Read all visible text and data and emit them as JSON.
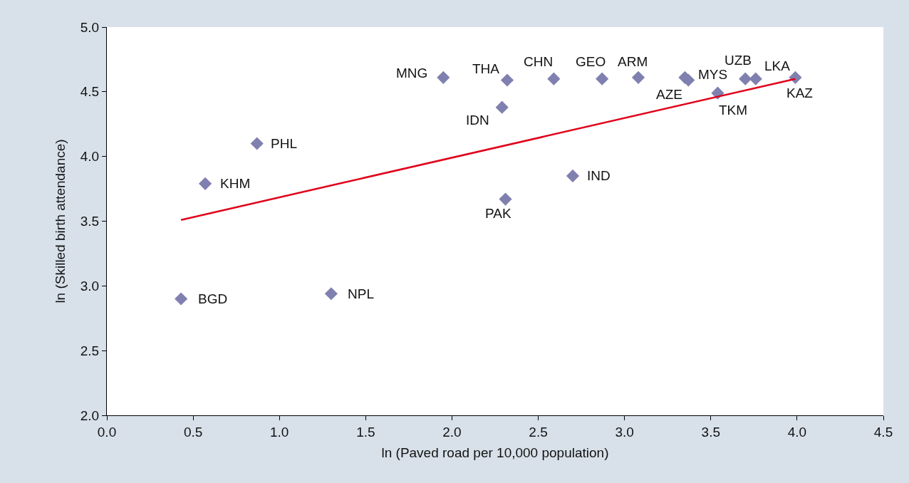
{
  "chart_data": {
    "type": "scatter",
    "xlabel": "ln (Paved road per 10,000 population)",
    "ylabel": "ln (Skilled birth attendance)",
    "xlim": [
      0,
      4.5
    ],
    "xticks": [
      {
        "value": 0,
        "label": "0.0"
      },
      {
        "value": 0.5,
        "label": "0.5"
      },
      {
        "value": 1,
        "label": "1.0"
      },
      {
        "value": 1.5,
        "label": "1.5"
      },
      {
        "value": 2,
        "label": "2.0"
      },
      {
        "value": 2.5,
        "label": "2.5"
      },
      {
        "value": 3,
        "label": "3.0"
      },
      {
        "value": 3.5,
        "label": "3.5"
      },
      {
        "value": 4,
        "label": "4.0"
      },
      {
        "value": 4.5,
        "label": "4.5"
      }
    ],
    "ylim": [
      2,
      5
    ],
    "yticks": [
      {
        "value": 2,
        "label": "2.0"
      },
      {
        "value": 2.5,
        "label": "2.5"
      },
      {
        "value": 3,
        "label": "3.0"
      },
      {
        "value": 3.5,
        "label": "3.5"
      },
      {
        "value": 4,
        "label": "4.0"
      },
      {
        "value": 4.5,
        "label": "4.5"
      },
      {
        "value": 5,
        "label": "5.0"
      }
    ],
    "grid": false,
    "series": [
      {
        "marker": "diamond",
        "color": "#8080b0",
        "x": [
          0.43,
          0.57,
          0.87,
          1.3,
          1.95,
          2.29,
          2.32,
          2.31,
          2.59,
          2.7,
          2.87,
          3.08,
          3.35,
          3.37,
          3.54,
          3.7,
          3.76,
          3.99
        ],
        "values": [
          2.9,
          3.79,
          4.1,
          2.94,
          4.61,
          4.38,
          4.59,
          3.67,
          4.6,
          3.85,
          4.6,
          4.61,
          4.61,
          4.59,
          4.49,
          4.6,
          4.6,
          4.61
        ]
      },
      {
        "type": "line",
        "marker": "none",
        "color": "#e0001a",
        "x": [
          0.43,
          3.99
        ],
        "values": [
          3.51,
          4.6
        ]
      }
    ],
    "annotations": [
      {
        "text": "BGD",
        "x": 0.43,
        "y": 2.9
      },
      {
        "text": "KHM",
        "x": 0.57,
        "y": 3.79
      },
      {
        "text": "PHL",
        "x": 0.87,
        "y": 4.1
      },
      {
        "text": "NPL",
        "x": 1.3,
        "y": 2.94
      },
      {
        "text": "MNG",
        "x": 1.95,
        "y": 4.61
      },
      {
        "text": "IDN",
        "x": 2.29,
        "y": 4.38
      },
      {
        "text": "THA",
        "x": 2.32,
        "y": 4.59
      },
      {
        "text": "PAK",
        "x": 2.31,
        "y": 3.67
      },
      {
        "text": "CHN",
        "x": 2.59,
        "y": 4.6
      },
      {
        "text": "IND",
        "x": 2.7,
        "y": 3.85
      },
      {
        "text": "GEO",
        "x": 2.87,
        "y": 4.6
      },
      {
        "text": "ARM",
        "x": 3.08,
        "y": 4.61
      },
      {
        "text": "AZE",
        "x": 3.35,
        "y": 4.61
      },
      {
        "text": "MYS",
        "x": 3.37,
        "y": 4.59
      },
      {
        "text": "TKM",
        "x": 3.54,
        "y": 4.49
      },
      {
        "text": "UZB",
        "x": 3.7,
        "y": 4.6
      },
      {
        "text": "LKA",
        "x": 3.76,
        "y": 4.6
      },
      {
        "text": "KAZ",
        "x": 3.99,
        "y": 4.61
      }
    ]
  }
}
